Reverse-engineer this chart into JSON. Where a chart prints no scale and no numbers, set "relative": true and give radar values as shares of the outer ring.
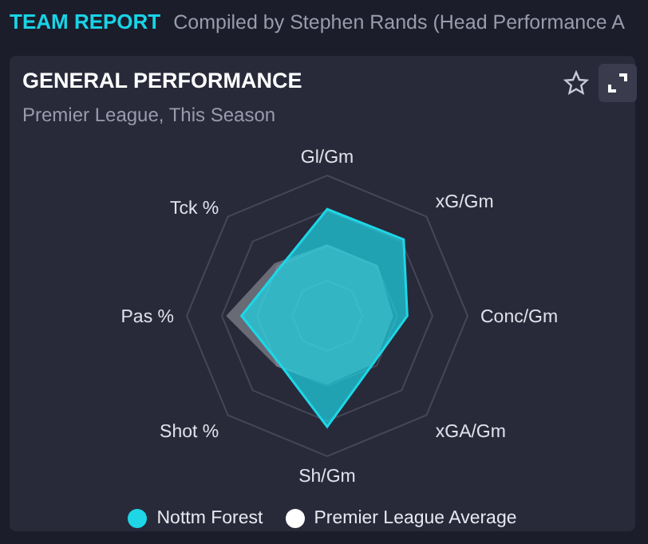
{
  "chart_data": {
    "type": "radar",
    "title": "GENERAL PERFORMANCE",
    "subtitle": "Premier League, This Season",
    "annotations": [
      "TEAM REPORT",
      "Compiled by Stephen Rands (Head Performance A"
    ],
    "relative": true,
    "categories": [
      "Gl/Gm",
      "xG/Gm",
      "Conc/Gm",
      "xGA/Gm",
      "Sh/Gm",
      "Shot %",
      "Pas %",
      "Tck %"
    ],
    "series": [
      {
        "name": "Premier League Average",
        "color": "#ffffff",
        "values": [
          0.51,
          0.51,
          0.47,
          0.48,
          0.49,
          0.51,
          0.72,
          0.53
        ]
      },
      {
        "name": "Nottm Forest",
        "color": "#1ed6e6",
        "values": [
          0.76,
          0.77,
          0.57,
          0.47,
          0.79,
          0.48,
          0.61,
          0.48
        ]
      }
    ],
    "legend": "bottom",
    "grid": true
  }
}
